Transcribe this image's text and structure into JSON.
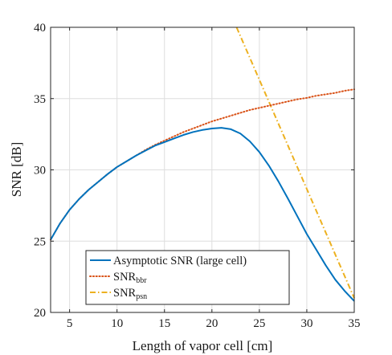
{
  "chart_data": {
    "type": "line",
    "title": "",
    "xlabel": "Length of vapor cell [cm]",
    "ylabel": "SNR [dB]",
    "xlim": [
      3,
      35
    ],
    "ylim": [
      20,
      40
    ],
    "x_ticks": [
      5,
      10,
      15,
      20,
      25,
      30,
      35
    ],
    "y_ticks": [
      20,
      25,
      30,
      35,
      40
    ],
    "grid": true,
    "legend_position": "bottom-left",
    "series": [
      {
        "name": "Asymptotic SNR (large cell)",
        "legend_main": "Asymptotic SNR (large cell)",
        "legend_sub": "",
        "color": "#0072BD",
        "style": "solid",
        "x": [
          3,
          4,
          5,
          6,
          7,
          8,
          9,
          10,
          11,
          12,
          13,
          14,
          15,
          16,
          17,
          18,
          19,
          20,
          21,
          22,
          23,
          24,
          25,
          26,
          27,
          28,
          29,
          30,
          31,
          32,
          33,
          34,
          35
        ],
        "y": [
          25.1,
          26.25,
          27.2,
          27.95,
          28.6,
          29.15,
          29.7,
          30.2,
          30.6,
          31.0,
          31.35,
          31.7,
          31.95,
          32.2,
          32.45,
          32.65,
          32.8,
          32.9,
          32.95,
          32.85,
          32.55,
          32.0,
          31.25,
          30.3,
          29.2,
          28.0,
          26.75,
          25.5,
          24.4,
          23.3,
          22.3,
          21.5,
          20.8
        ]
      },
      {
        "name": "SNRbbr",
        "legend_main": "SNR",
        "legend_sub": "bbr",
        "color": "#D95319",
        "style": "dotted",
        "x": [
          3,
          4,
          5,
          6,
          7,
          8,
          9,
          10,
          11,
          12,
          13,
          14,
          15,
          16,
          17,
          18,
          19,
          20,
          21,
          22,
          23,
          24,
          25,
          26,
          27,
          28,
          29,
          30,
          31,
          32,
          33,
          34,
          35
        ],
        "y": [
          25.1,
          26.25,
          27.2,
          27.95,
          28.6,
          29.15,
          29.7,
          30.2,
          30.6,
          31.0,
          31.4,
          31.75,
          32.05,
          32.35,
          32.65,
          32.9,
          33.15,
          33.4,
          33.6,
          33.8,
          34.0,
          34.2,
          34.35,
          34.5,
          34.65,
          34.8,
          34.95,
          35.05,
          35.2,
          35.3,
          35.4,
          35.55,
          35.65
        ]
      },
      {
        "name": "SNRpsn",
        "legend_main": "SNR",
        "legend_sub": "psn",
        "color": "#EDB120",
        "style": "dashdot",
        "x": [
          22.6,
          35
        ],
        "y": [
          40,
          21.0
        ]
      }
    ]
  }
}
